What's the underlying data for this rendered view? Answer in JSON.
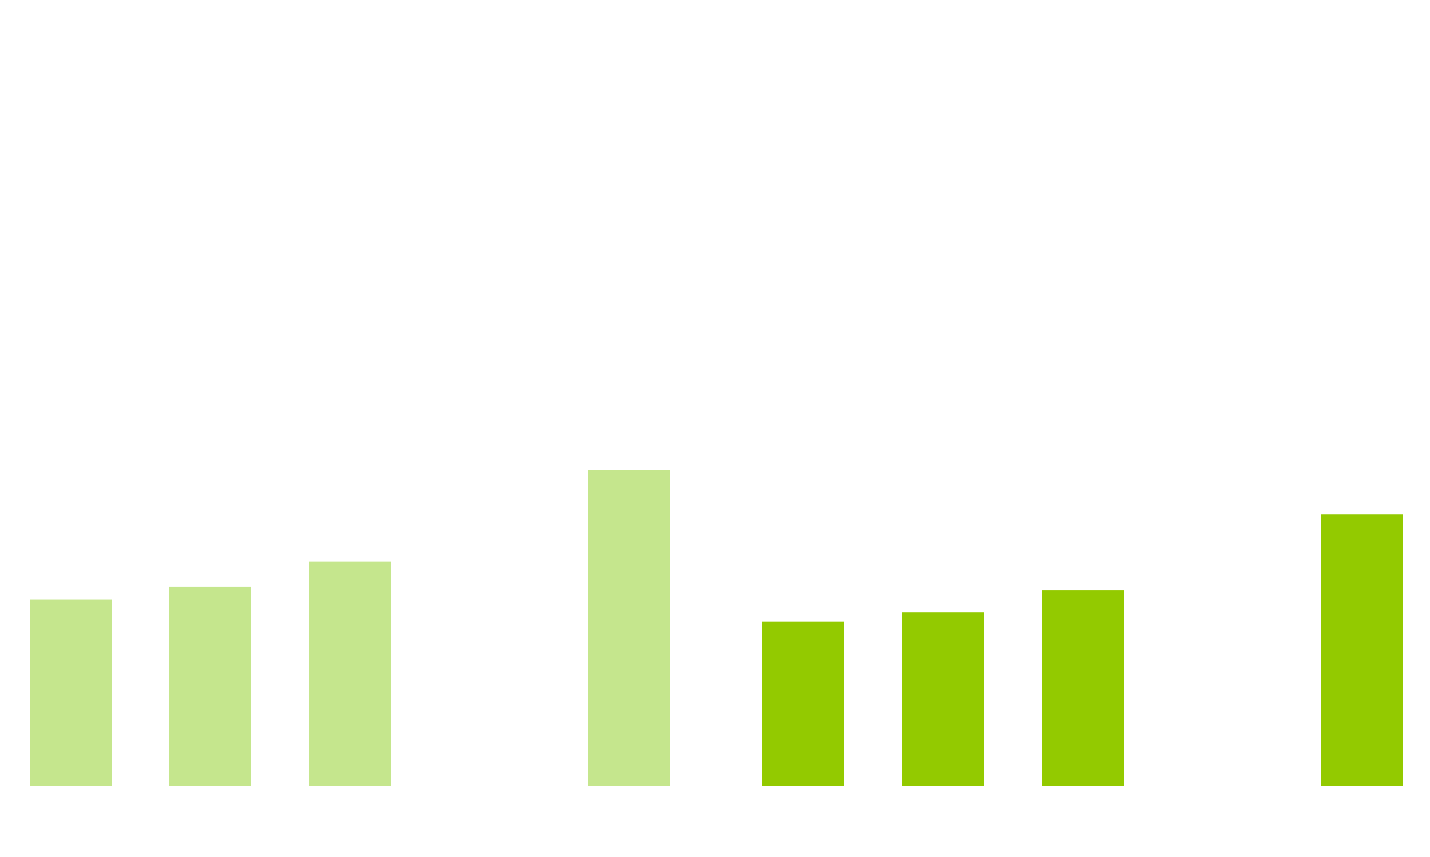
{
  "chart_data": {
    "type": "bar",
    "title": "",
    "xlabel": "",
    "ylabel": "",
    "grid": false,
    "legend": "none",
    "axes_visible": false,
    "ylim": [
      0,
      100
    ],
    "series": [
      {
        "color": "#c5e68d",
        "values": [
          59,
          63,
          71,
          100
        ]
      },
      {
        "color": "#93ca00",
        "values": [
          52,
          55,
          62,
          86
        ]
      }
    ]
  }
}
